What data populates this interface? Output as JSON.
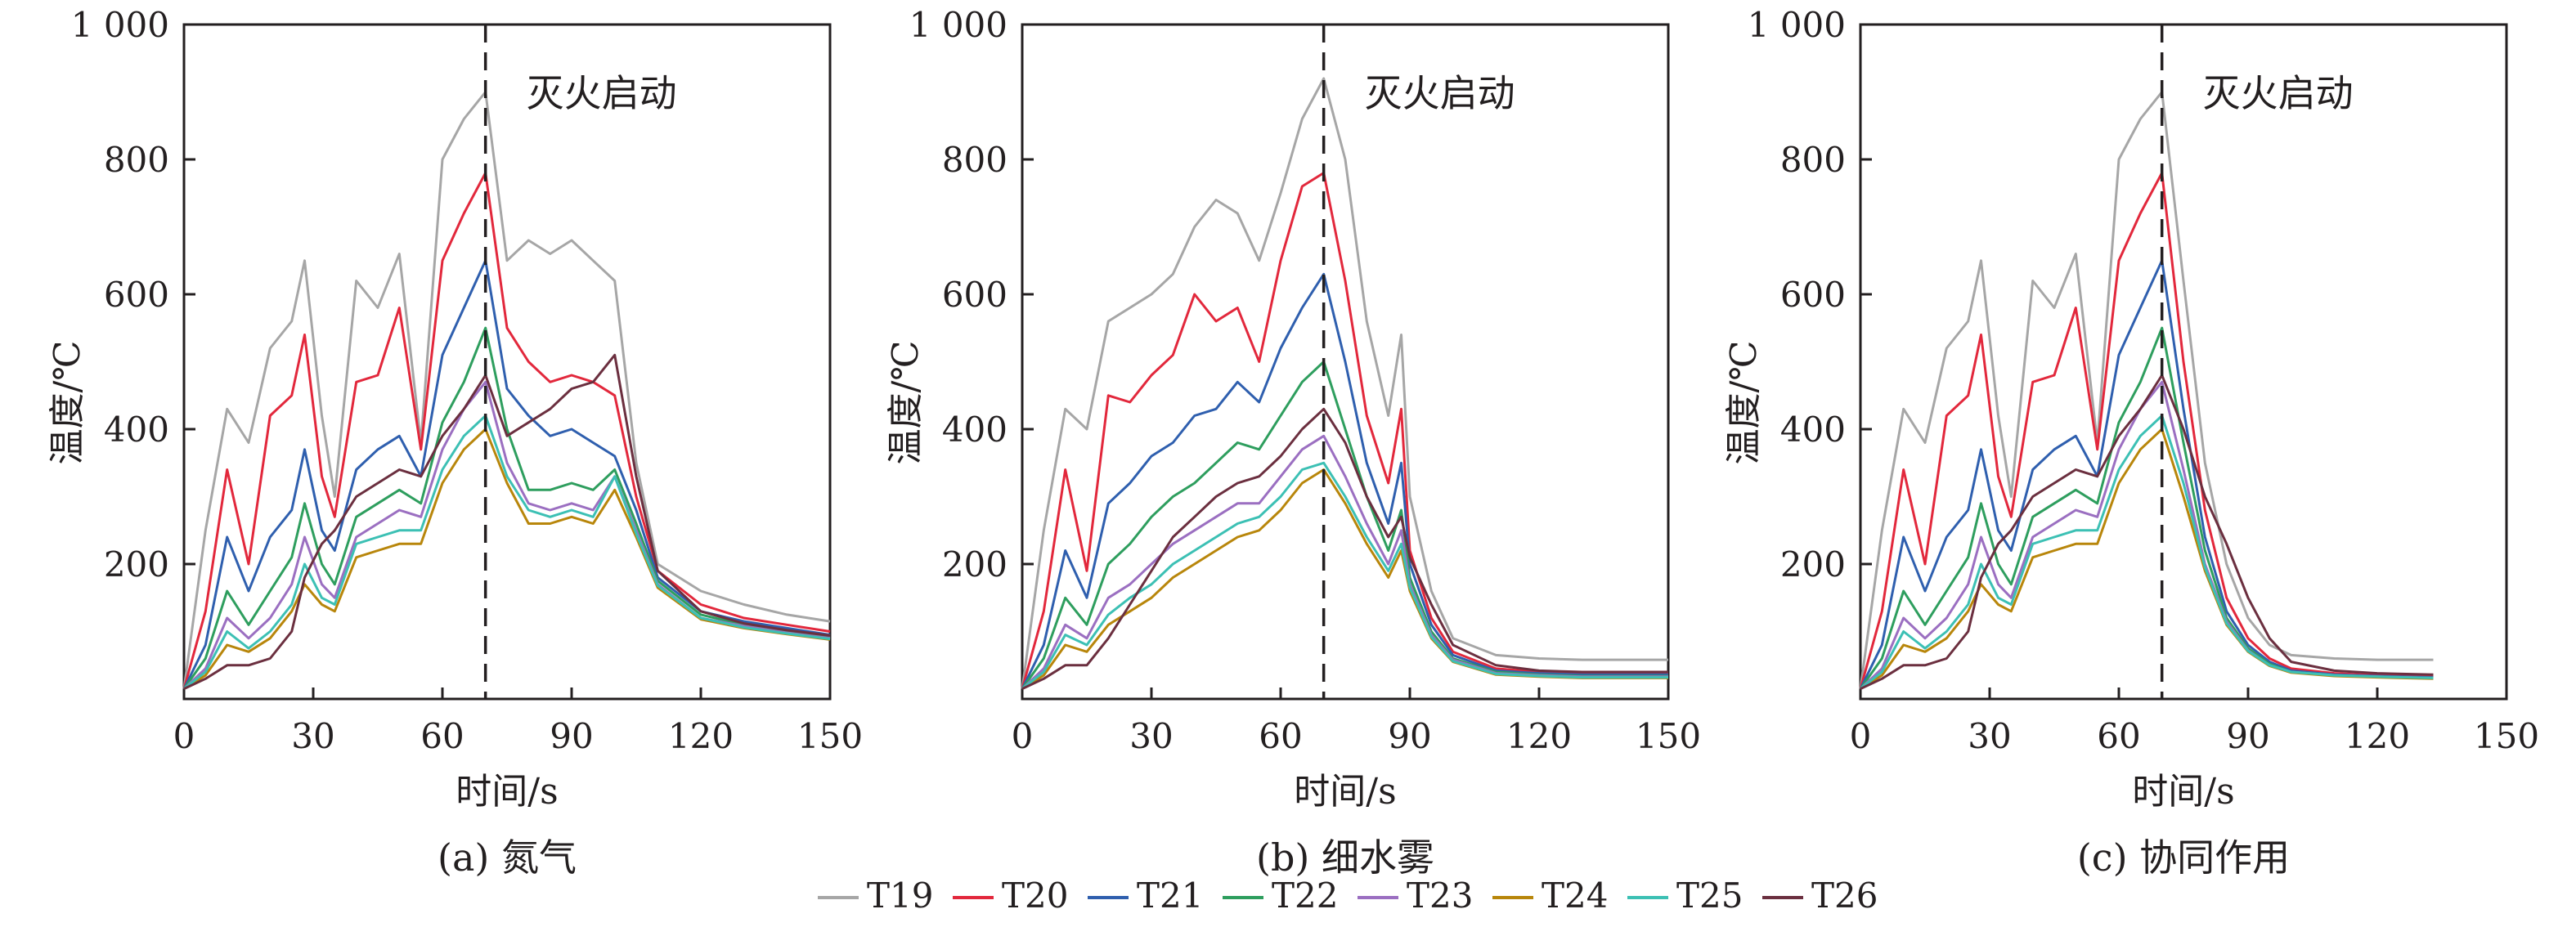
{
  "chart_data": [
    {
      "type": "line",
      "panel_label": "(a) 氮气",
      "xlabel": "时间/s",
      "ylabel": "温度/℃",
      "annotation": "灭火启动",
      "ignition_line_x": 70,
      "xlim": [
        0,
        150
      ],
      "ylim": [
        0,
        1000
      ],
      "xticks": [
        "0",
        "30",
        "60",
        "90",
        "120",
        "150"
      ],
      "yticks": [
        "200",
        "400",
        "600",
        "800",
        "1 000"
      ],
      "x": [
        0,
        5,
        10,
        15,
        20,
        25,
        28,
        32,
        35,
        40,
        45,
        50,
        55,
        60,
        65,
        70,
        75,
        80,
        85,
        90,
        95,
        100,
        105,
        110,
        120,
        130,
        140,
        150
      ],
      "series": [
        {
          "name": "T19",
          "values": [
            15,
            250,
            430,
            380,
            520,
            560,
            650,
            420,
            300,
            620,
            580,
            660,
            380,
            800,
            860,
            900,
            650,
            680,
            660,
            680,
            650,
            620,
            350,
            200,
            160,
            140,
            125,
            115
          ]
        },
        {
          "name": "T20",
          "values": [
            15,
            130,
            340,
            200,
            420,
            450,
            540,
            330,
            270,
            470,
            480,
            580,
            370,
            650,
            720,
            780,
            550,
            500,
            470,
            480,
            470,
            450,
            300,
            190,
            140,
            120,
            110,
            100
          ]
        },
        {
          "name": "T21",
          "values": [
            15,
            80,
            240,
            160,
            240,
            280,
            370,
            250,
            220,
            340,
            370,
            390,
            330,
            510,
            580,
            650,
            460,
            420,
            390,
            400,
            380,
            360,
            280,
            180,
            130,
            115,
            105,
            95
          ]
        },
        {
          "name": "T22",
          "values": [
            15,
            60,
            160,
            110,
            160,
            210,
            290,
            200,
            170,
            270,
            290,
            310,
            290,
            410,
            470,
            550,
            400,
            310,
            310,
            320,
            310,
            340,
            260,
            175,
            125,
            110,
            100,
            92
          ]
        },
        {
          "name": "T23",
          "values": [
            15,
            45,
            120,
            90,
            120,
            170,
            240,
            170,
            150,
            240,
            260,
            280,
            270,
            370,
            430,
            470,
            350,
            290,
            280,
            290,
            280,
            330,
            250,
            170,
            120,
            108,
            98,
            90
          ]
        },
        {
          "name": "T24",
          "values": [
            15,
            35,
            80,
            70,
            90,
            130,
            170,
            140,
            130,
            210,
            220,
            230,
            230,
            320,
            370,
            400,
            320,
            260,
            260,
            270,
            260,
            310,
            240,
            165,
            118,
            105,
            96,
            88
          ]
        },
        {
          "name": "T25",
          "values": [
            15,
            40,
            100,
            75,
            100,
            140,
            200,
            150,
            140,
            230,
            240,
            250,
            250,
            340,
            390,
            420,
            330,
            280,
            270,
            280,
            270,
            330,
            245,
            168,
            120,
            106,
            97,
            89
          ]
        },
        {
          "name": "T26",
          "values": [
            15,
            30,
            50,
            50,
            60,
            100,
            180,
            230,
            250,
            300,
            320,
            340,
            330,
            390,
            430,
            480,
            390,
            410,
            430,
            460,
            470,
            510,
            330,
            190,
            130,
            112,
            102,
            94
          ]
        }
      ]
    },
    {
      "type": "line",
      "panel_label": "(b) 细水雾",
      "xlabel": "时间/s",
      "ylabel": "温度/℃",
      "annotation": "灭火启动",
      "ignition_line_x": 70,
      "xlim": [
        0,
        150
      ],
      "ylim": [
        0,
        1000
      ],
      "xticks": [
        "0",
        "30",
        "60",
        "90",
        "120",
        "150"
      ],
      "yticks": [
        "200",
        "400",
        "600",
        "800",
        "1 000"
      ],
      "x": [
        0,
        5,
        10,
        15,
        20,
        25,
        30,
        35,
        40,
        45,
        50,
        55,
        60,
        65,
        70,
        75,
        80,
        85,
        88,
        90,
        95,
        100,
        110,
        120,
        130,
        140,
        150
      ],
      "series": [
        {
          "name": "T19",
          "values": [
            15,
            250,
            430,
            400,
            560,
            580,
            600,
            630,
            700,
            740,
            720,
            650,
            750,
            860,
            920,
            800,
            560,
            420,
            540,
            300,
            160,
            90,
            65,
            60,
            58,
            58,
            58
          ]
        },
        {
          "name": "T20",
          "values": [
            15,
            130,
            340,
            190,
            450,
            440,
            480,
            510,
            600,
            560,
            580,
            500,
            650,
            760,
            780,
            620,
            420,
            320,
            430,
            220,
            120,
            70,
            45,
            40,
            38,
            38,
            38
          ]
        },
        {
          "name": "T21",
          "values": [
            15,
            80,
            220,
            150,
            290,
            320,
            360,
            380,
            420,
            430,
            470,
            440,
            520,
            580,
            630,
            500,
            350,
            260,
            350,
            200,
            110,
            65,
            42,
            38,
            36,
            36,
            36
          ]
        },
        {
          "name": "T22",
          "values": [
            15,
            60,
            150,
            110,
            200,
            230,
            270,
            300,
            320,
            350,
            380,
            370,
            420,
            470,
            500,
            400,
            300,
            220,
            280,
            180,
            100,
            60,
            40,
            36,
            34,
            34,
            34
          ]
        },
        {
          "name": "T23",
          "values": [
            15,
            45,
            110,
            90,
            150,
            170,
            200,
            230,
            250,
            270,
            290,
            290,
            330,
            370,
            390,
            330,
            260,
            200,
            250,
            170,
            95,
            58,
            38,
            35,
            33,
            33,
            33
          ]
        },
        {
          "name": "T24",
          "values": [
            15,
            35,
            80,
            70,
            110,
            130,
            150,
            180,
            200,
            220,
            240,
            250,
            280,
            320,
            340,
            290,
            230,
            180,
            220,
            160,
            90,
            55,
            36,
            33,
            31,
            31,
            31
          ]
        },
        {
          "name": "T25",
          "values": [
            15,
            40,
            95,
            80,
            125,
            150,
            170,
            200,
            220,
            240,
            260,
            270,
            300,
            340,
            350,
            300,
            240,
            190,
            230,
            165,
            92,
            56,
            37,
            34,
            32,
            32,
            32
          ]
        },
        {
          "name": "T26",
          "values": [
            15,
            30,
            50,
            50,
            90,
            140,
            190,
            240,
            270,
            300,
            320,
            330,
            360,
            400,
            430,
            380,
            300,
            240,
            270,
            210,
            140,
            80,
            50,
            42,
            40,
            40,
            40
          ]
        }
      ]
    },
    {
      "type": "line",
      "panel_label": "(c) 协同作用",
      "xlabel": "时间/s",
      "ylabel": "温度/℃",
      "annotation": "灭火启动",
      "ignition_line_x": 70,
      "xlim": [
        0,
        150
      ],
      "ylim": [
        0,
        1000
      ],
      "xticks": [
        "0",
        "30",
        "60",
        "90",
        "120",
        "150"
      ],
      "yticks": [
        "200",
        "400",
        "600",
        "800",
        "1 000"
      ],
      "x": [
        0,
        5,
        10,
        15,
        20,
        25,
        28,
        32,
        35,
        40,
        45,
        50,
        55,
        60,
        65,
        70,
        75,
        80,
        85,
        90,
        95,
        100,
        110,
        120,
        133
      ],
      "series": [
        {
          "name": "T19",
          "values": [
            15,
            250,
            430,
            380,
            520,
            560,
            650,
            420,
            300,
            620,
            580,
            660,
            380,
            800,
            860,
            900,
            620,
            350,
            200,
            120,
            80,
            65,
            60,
            58,
            58
          ]
        },
        {
          "name": "T20",
          "values": [
            15,
            130,
            340,
            200,
            420,
            450,
            540,
            330,
            270,
            470,
            480,
            580,
            370,
            650,
            720,
            780,
            500,
            280,
            150,
            90,
            60,
            45,
            38,
            35,
            33
          ]
        },
        {
          "name": "T21",
          "values": [
            15,
            80,
            240,
            160,
            240,
            280,
            370,
            250,
            220,
            340,
            370,
            390,
            330,
            510,
            580,
            650,
            430,
            240,
            130,
            80,
            55,
            42,
            36,
            34,
            32
          ]
        },
        {
          "name": "T22",
          "values": [
            15,
            60,
            160,
            110,
            160,
            210,
            290,
            200,
            170,
            270,
            290,
            310,
            290,
            410,
            470,
            550,
            380,
            220,
            120,
            75,
            52,
            40,
            35,
            33,
            31
          ]
        },
        {
          "name": "T23",
          "values": [
            15,
            45,
            120,
            90,
            120,
            170,
            240,
            170,
            150,
            240,
            260,
            280,
            270,
            370,
            430,
            470,
            340,
            200,
            115,
            72,
            50,
            40,
            35,
            33,
            31
          ]
        },
        {
          "name": "T24",
          "values": [
            15,
            35,
            80,
            70,
            90,
            130,
            170,
            140,
            130,
            210,
            220,
            230,
            230,
            320,
            370,
            400,
            300,
            190,
            110,
            70,
            49,
            39,
            34,
            32,
            30
          ]
        },
        {
          "name": "T25",
          "values": [
            15,
            40,
            100,
            75,
            100,
            140,
            200,
            150,
            140,
            230,
            240,
            250,
            250,
            340,
            390,
            420,
            320,
            195,
            112,
            71,
            50,
            40,
            35,
            33,
            31
          ]
        },
        {
          "name": "T26",
          "values": [
            15,
            30,
            50,
            50,
            60,
            100,
            180,
            230,
            250,
            300,
            320,
            340,
            330,
            390,
            430,
            480,
            400,
            300,
            230,
            150,
            90,
            55,
            42,
            38,
            36
          ]
        }
      ]
    }
  ],
  "legend": [
    {
      "name": "T19",
      "color": "#a6a6a6"
    },
    {
      "name": "T20",
      "color": "#e2283c"
    },
    {
      "name": "T21",
      "color": "#2f5fae"
    },
    {
      "name": "T22",
      "color": "#2e9e5e"
    },
    {
      "name": "T23",
      "color": "#9b6fc1"
    },
    {
      "name": "T24",
      "color": "#b8860b"
    },
    {
      "name": "T25",
      "color": "#3cc0b4"
    },
    {
      "name": "T26",
      "color": "#6b2f3f"
    }
  ]
}
